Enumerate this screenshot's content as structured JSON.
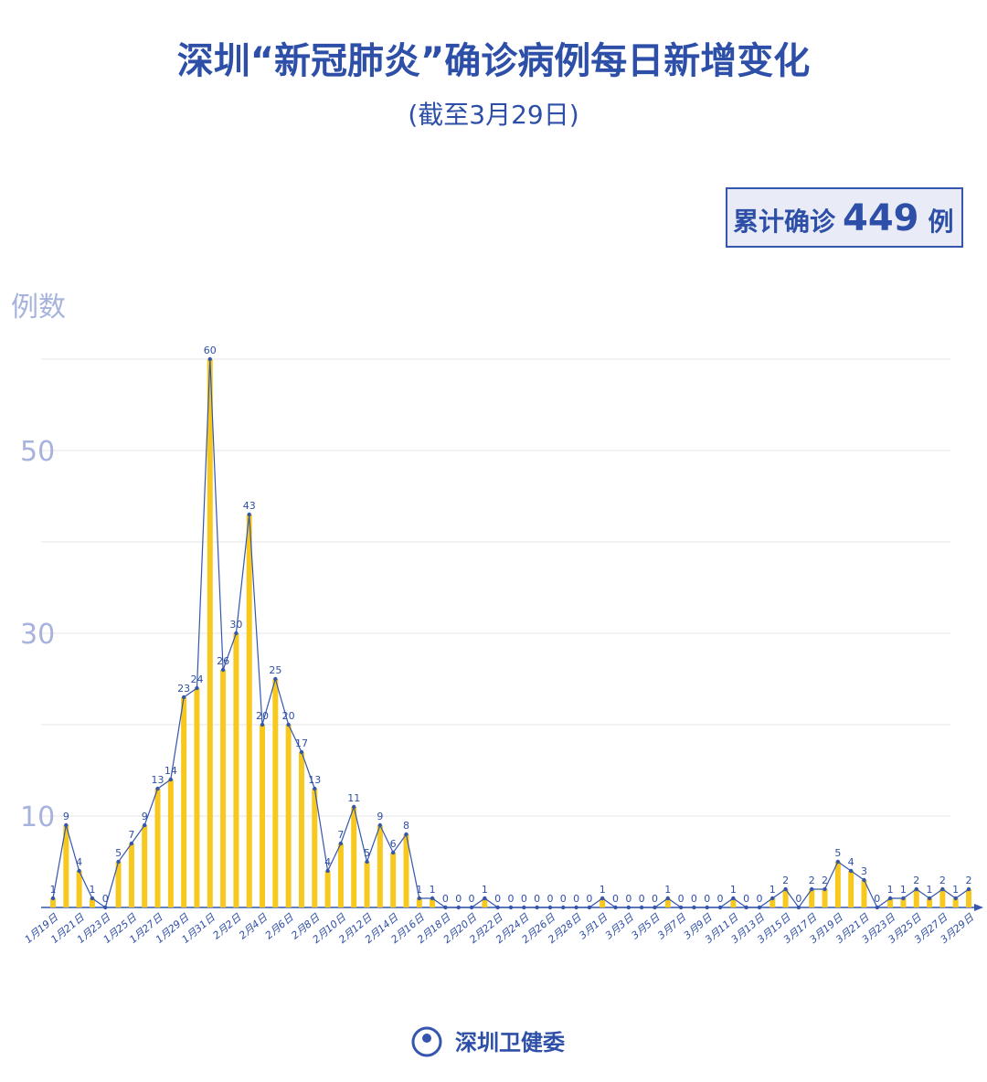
{
  "chart_data": {
    "type": "combo",
    "title": "深圳“新冠肺炎”确诊病例每日新增变化",
    "subtitle": "(截至3月29日)",
    "total": {
      "prefix": "累计确诊",
      "value": 449,
      "suffix": "例"
    },
    "y_label": "例数",
    "footer": "深圳卫健委",
    "categories": [
      "1月19日",
      null,
      "1月21日",
      null,
      "1月23日",
      null,
      "1月25日",
      null,
      "1月27日",
      null,
      "1月29日",
      null,
      "1月31日",
      null,
      "2月2日",
      null,
      "2月4日",
      null,
      "2月6日",
      null,
      "2月8日",
      null,
      "2月10日",
      null,
      "2月12日",
      null,
      "2月14日",
      null,
      "2月16日",
      null,
      "2月18日",
      null,
      "2月20日",
      null,
      "2月22日",
      null,
      "2月24日",
      null,
      "2月26日",
      null,
      "2月28日",
      null,
      "3月1日",
      null,
      "3月3日",
      null,
      "3月5日",
      null,
      "3月7日",
      null,
      "3月9日",
      null,
      "3月11日",
      null,
      "3月13日",
      null,
      "3月15日",
      null,
      "3月17日",
      null,
      "3月19日",
      null,
      "3月21日",
      null,
      "3月23日",
      null,
      "3月25日",
      null,
      "3月27日",
      null,
      "3月29日"
    ],
    "values": [
      1,
      9,
      4,
      1,
      0,
      5,
      7,
      9,
      13,
      14,
      23,
      24,
      60,
      26,
      30,
      43,
      20,
      25,
      20,
      17,
      13,
      4,
      7,
      11,
      5,
      9,
      6,
      8,
      1,
      1,
      0,
      0,
      0,
      1,
      0,
      0,
      0,
      0,
      0,
      0,
      0,
      0,
      1,
      0,
      0,
      0,
      0,
      1,
      0,
      0,
      0,
      0,
      1,
      0,
      0,
      1,
      2,
      0,
      2,
      2,
      5,
      4,
      3,
      0,
      1,
      1,
      2,
      1,
      2,
      1,
      2
    ],
    "bar_color": "#f7c81e",
    "line_color": "#3556ad",
    "ylim": [
      0,
      60
    ],
    "yticks": [
      {
        "value": 10,
        "label": "10"
      },
      {
        "value": 20,
        "label": null
      },
      {
        "value": 30,
        "label": "30"
      },
      {
        "value": 40,
        "label": null
      },
      {
        "value": 50,
        "label": "50"
      },
      {
        "value": 60,
        "label": null
      }
    ],
    "grid": true
  }
}
